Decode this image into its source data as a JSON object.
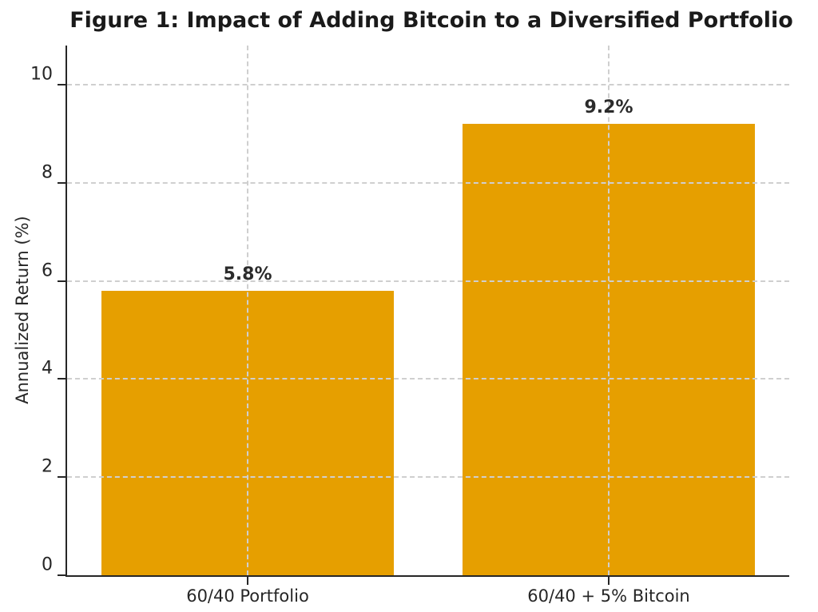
{
  "title": "Figure 1: Impact of Adding Bitcoin to a Diversified Portfolio",
  "chart_data": {
    "type": "bar",
    "title": "Figure 1: Impact of Adding Bitcoin to a Diversified Portfolio",
    "categories": [
      "60/40 Portfolio",
      "60/40 + 5% Bitcoin"
    ],
    "values": [
      5.8,
      9.2
    ],
    "value_labels": [
      "5.8%",
      "9.2%"
    ],
    "xlabel": "",
    "ylabel": "Annualized Return (%)",
    "ylim": [
      0,
      10.8
    ],
    "yticks": [
      0,
      2,
      4,
      6,
      8,
      10
    ],
    "grid": true,
    "grid_style": "dashed",
    "legend": false,
    "colors": {
      "bar_fill": "#E69F00",
      "grid_line": "#cfcfcf",
      "spine": "#262626",
      "title_text": "#1a1a1a",
      "tick_text": "#262626",
      "value_label_text": "#2b2b2b"
    },
    "bar_width_fraction": 0.405
  }
}
